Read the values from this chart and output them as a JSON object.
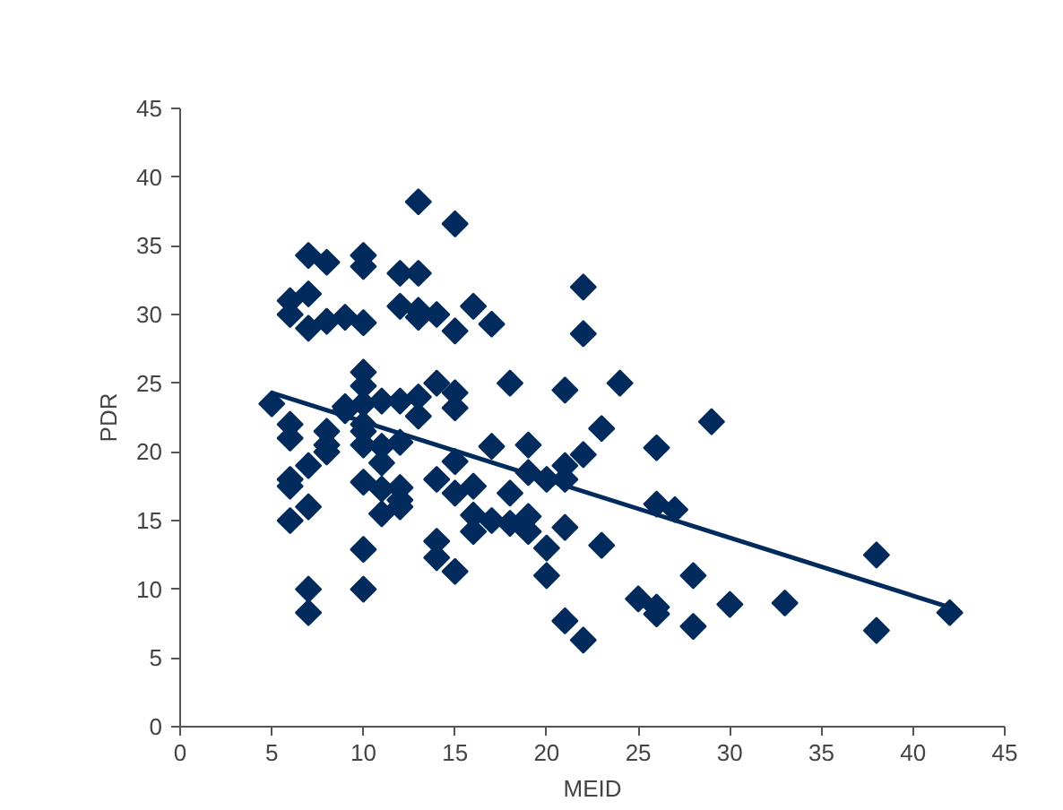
{
  "chart_data": {
    "type": "scatter",
    "xlabel": "MEID",
    "ylabel": "PDR",
    "xlim": [
      0,
      45
    ],
    "ylim": [
      0,
      45
    ],
    "xticks": [
      0,
      5,
      10,
      15,
      20,
      25,
      30,
      35,
      40,
      45
    ],
    "yticks": [
      0,
      5,
      10,
      15,
      20,
      25,
      30,
      35,
      40,
      45
    ],
    "marker": "diamond",
    "series": [
      {
        "color": "#002b5c",
        "x": [
          5,
          6,
          6,
          6,
          6,
          6,
          6,
          6,
          7,
          7,
          7,
          7,
          7,
          7,
          7,
          8,
          8,
          8,
          8,
          8,
          9,
          9,
          9,
          10,
          10,
          10,
          10,
          10,
          10,
          10,
          10,
          10,
          10,
          10,
          10,
          11,
          11,
          11,
          11,
          11,
          12,
          12,
          12,
          12,
          12,
          12,
          12,
          13,
          13,
          13,
          13,
          13,
          13,
          14,
          14,
          14,
          14,
          14,
          15,
          15,
          15,
          15,
          15,
          15,
          15,
          16,
          16,
          16,
          16,
          17,
          17,
          17,
          18,
          18,
          18,
          19,
          19,
          19,
          19,
          20,
          20,
          20,
          21,
          21,
          21,
          21,
          21,
          22,
          22,
          22,
          22,
          23,
          23,
          24,
          25,
          26,
          26,
          26,
          26,
          27,
          28,
          28,
          29,
          30,
          33,
          38,
          38,
          42
        ],
        "values": [
          23.5,
          31,
          30,
          22,
          21,
          18,
          17.5,
          15,
          34.3,
          31.5,
          29,
          19,
          16,
          10,
          8.3,
          33.8,
          29.5,
          21.5,
          20.5,
          20,
          29.8,
          23.3,
          23,
          34.3,
          33.5,
          29.4,
          25.8,
          24.8,
          23.5,
          22,
          21.5,
          20.5,
          17.8,
          12.9,
          10,
          23.7,
          20.4,
          19.2,
          17.3,
          15.5,
          33,
          30.6,
          23.7,
          20.7,
          17.4,
          16.5,
          16,
          38.2,
          33,
          30.3,
          29.8,
          24,
          22.6,
          30,
          25,
          18,
          13.5,
          12.3,
          36.6,
          28.8,
          24.3,
          23.2,
          19.3,
          17,
          11.3,
          30.6,
          17.5,
          15.4,
          14.2,
          29.3,
          20.4,
          15,
          25,
          17,
          14.8,
          20.5,
          18.5,
          15.3,
          14.2,
          18,
          13,
          11,
          24.5,
          19,
          18,
          14.5,
          7.7,
          32,
          28.6,
          19.8,
          6.3,
          21.7,
          13.2,
          25,
          9.3,
          20.3,
          16.2,
          8.7,
          8.2,
          15.8,
          11,
          7.3,
          22.2,
          8.9,
          9,
          12.5,
          7,
          8.3
        ]
      },
      {
        "type": "line",
        "color": "#002b5c",
        "marker": "none",
        "x": [
          5,
          42.2
        ],
        "values": [
          24.3,
          8.6
        ]
      }
    ]
  }
}
